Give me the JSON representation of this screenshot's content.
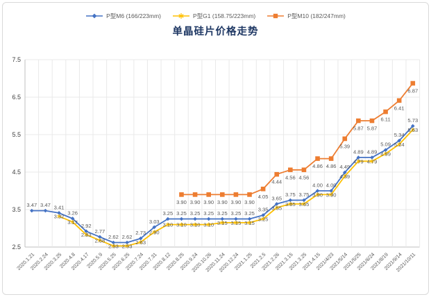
{
  "legend": [
    {
      "label": "P型M6 (166/223mm)",
      "color": "#4472C4",
      "marker": "diamond"
    },
    {
      "label": "P型G1 (158.75/223mm)",
      "color": "#FFC000",
      "marker": "star"
    },
    {
      "label": "P型M10 (182/247mm)",
      "color": "#ED7D31",
      "marker": "square"
    }
  ],
  "chart_data": {
    "type": "line",
    "title": "单晶硅片价格走势",
    "categories": [
      "2020.1.21",
      "2020.2.24",
      "2020.3.25",
      "2020.4.8",
      "2020.4.17",
      "2020.5.9",
      "2020.5.25",
      "2020.6.25",
      "2020.7.24",
      "2020.7.31",
      "2020.8.12",
      "2020.8.25",
      "2020.9.24",
      "2020.10.26",
      "2020.11.24",
      "2020.12.24",
      "2021.1.25",
      "2021.2.5",
      "2021.2.26",
      "2021.3.15",
      "2021.3.25",
      "2021.4.15",
      "2021/4/23",
      "2021/5/14",
      "2021/5/25",
      "2021/6/24",
      "2021/8/19",
      "2021/9/14",
      "2021/10/11"
    ],
    "series": [
      {
        "name": "P型M6 (166/223mm)",
        "color": "#4472C4",
        "marker": "diamond",
        "values": [
          3.47,
          3.47,
          3.41,
          3.26,
          2.92,
          2.77,
          2.62,
          2.62,
          2.73,
          3.03,
          3.25,
          3.25,
          3.25,
          3.25,
          3.25,
          3.25,
          3.25,
          3.35,
          3.65,
          3.75,
          3.75,
          4.0,
          4.0,
          4.49,
          4.89,
          4.89,
          5.09,
          5.34,
          5.73
        ]
      },
      {
        "name": "P型G1 (158.75/223mm)",
        "color": "#FFC000",
        "marker": "star",
        "values": [
          null,
          null,
          3.32,
          3.17,
          2.83,
          2.68,
          2.53,
          2.53,
          2.63,
          2.9,
          3.1,
          3.1,
          3.1,
          3.1,
          3.15,
          3.15,
          3.15,
          3.25,
          3.55,
          3.65,
          3.65,
          3.9,
          3.9,
          4.39,
          4.79,
          4.79,
          4.99,
          5.24,
          5.63
        ]
      },
      {
        "name": "P型M10 (182/247mm)",
        "color": "#ED7D31",
        "marker": "square",
        "values": [
          null,
          null,
          null,
          null,
          null,
          null,
          null,
          null,
          null,
          null,
          null,
          3.9,
          3.9,
          3.9,
          3.9,
          3.9,
          3.9,
          4.05,
          4.44,
          4.56,
          4.56,
          4.86,
          4.86,
          5.39,
          5.87,
          5.87,
          6.11,
          6.41,
          6.87
        ]
      }
    ],
    "ylim": [
      2.5,
      7.5
    ],
    "yticks": [
      2.5,
      3.5,
      4.5,
      5.5,
      6.5,
      7.5
    ],
    "grid": true,
    "legend_position": "top",
    "data_labels": true,
    "label_color": "#595959",
    "axis_color": "#bfbfbf",
    "grid_color": "#e9e9e9"
  }
}
